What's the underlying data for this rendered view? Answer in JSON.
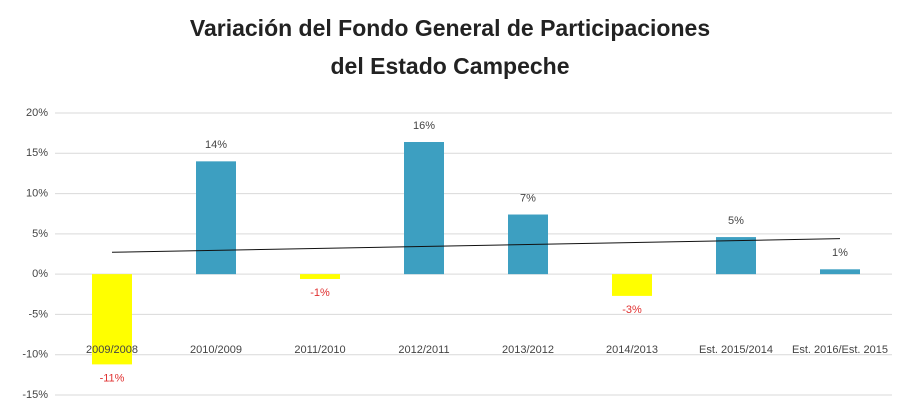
{
  "chart_data": {
    "type": "bar",
    "title": "Variación del Fondo General de Participaciones",
    "subtitle": "del Estado  Campeche",
    "categories": [
      "2009/2008",
      "2010/2009",
      "2011/2010",
      "2012/2011",
      "2013/2012",
      "2014/2013",
      "Est. 2015/2014",
      "Est. 2016/Est. 2015"
    ],
    "values": [
      -11.2,
      14,
      -0.6,
      16.4,
      7.4,
      -2.7,
      4.6,
      0.6
    ],
    "value_labels": [
      "-11%",
      "14%",
      "-1%",
      "16%",
      "7%",
      "-3%",
      "5%",
      "1%"
    ],
    "color": "#3d9fc1",
    "negative_color": "#ffff00",
    "ylim": [
      -15,
      20
    ],
    "yticks": [
      {
        "value": -15,
        "label": "-15%"
      },
      {
        "value": -10,
        "label": "-10%"
      },
      {
        "value": -5,
        "label": "-5%"
      },
      {
        "value": 0,
        "label": "0%"
      },
      {
        "value": 5,
        "label": "5%"
      },
      {
        "value": 10,
        "label": "10%"
      },
      {
        "value": 15,
        "label": "15%"
      },
      {
        "value": 20,
        "label": "20%"
      }
    ],
    "grid": true,
    "trendline": "linear"
  }
}
